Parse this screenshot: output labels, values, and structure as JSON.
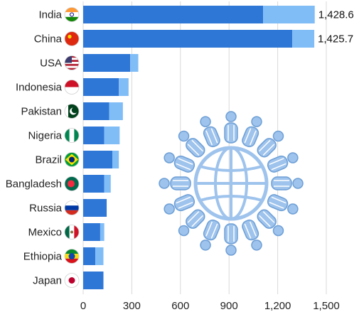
{
  "chart_data": {
    "type": "bar",
    "orientation": "horizontal",
    "stacked": true,
    "title": "",
    "xlabel": "",
    "ylabel": "",
    "xlim": [
      0,
      1500
    ],
    "x_ticks": [
      "0",
      "300",
      "600",
      "900",
      "1,200",
      "1,500"
    ],
    "x_tick_values": [
      0,
      300,
      600,
      900,
      1200,
      1500
    ],
    "grid": "vertical",
    "legend": "none",
    "categories": [
      "India",
      "China",
      "USA",
      "Indonesia",
      "Pakistan",
      "Nigeria",
      "Brazil",
      "Bangladesh",
      "Russia",
      "Mexico",
      "Ethiopia",
      "Japan"
    ],
    "series": [
      {
        "values": [
          1110,
          1290,
          290,
          220,
          160,
          130,
          180,
          130,
          145,
          105,
          75,
          125
        ],
        "color": "#2f77d6"
      },
      {
        "values": [
          318.6,
          135.7,
          50,
          60,
          85,
          95,
          40,
          40,
          0,
          25,
          50,
          0
        ],
        "color": "#80bdf6"
      }
    ],
    "totals": [
      1428.6,
      1425.7,
      340,
      280,
      245,
      225,
      220,
      170,
      145,
      130,
      125,
      125
    ],
    "data_labels": [
      "1,428.6",
      "1,425.7",
      "",
      "",
      "",
      "",
      "",
      "",
      "",
      "",
      "",
      ""
    ],
    "flag_icons": [
      "india-flag-icon",
      "china-flag-icon",
      "usa-flag-icon",
      "indonesia-flag-icon",
      "pakistan-flag-icon",
      "nigeria-flag-icon",
      "brazil-flag-icon",
      "bangladesh-flag-icon",
      "russia-flag-icon",
      "mexico-flag-icon",
      "ethiopia-flag-icon",
      "japan-flag-icon"
    ],
    "decoration_icon": "people-around-globe-icon",
    "decoration_color": "#9ec3ec"
  }
}
